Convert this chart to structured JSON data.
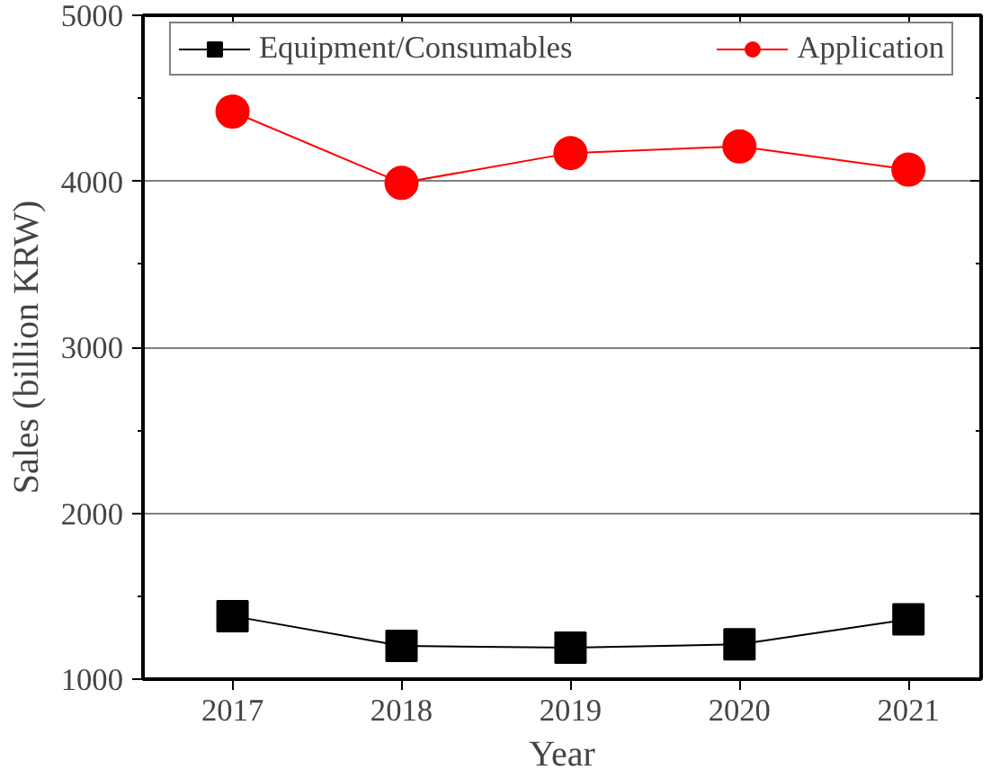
{
  "chart_data": {
    "type": "line",
    "xlabel": "Year",
    "ylabel": "Sales (billion KRW)",
    "categories": [
      "2017",
      "2018",
      "2019",
      "2020",
      "2021"
    ],
    "series": [
      {
        "name": "Equipment/Consumables",
        "color": "#000000",
        "marker": "square",
        "values": [
          1380,
          1200,
          1190,
          1210,
          1360
        ]
      },
      {
        "name": "Application",
        "color": "#ff0000",
        "marker": "circle",
        "values": [
          4420,
          3990,
          4170,
          4210,
          4070
        ]
      }
    ],
    "ylim": [
      1000,
      5000
    ],
    "yticks": [
      1000,
      {
        "value": 1500,
        "label": null
      },
      2000,
      {
        "value": 2500,
        "label": null
      },
      3000,
      {
        "value": 3500,
        "label": null
      },
      4000,
      {
        "value": 4500,
        "label": null
      },
      5000
    ],
    "grid": "y",
    "legend": "top",
    "line_style": "solid"
  }
}
